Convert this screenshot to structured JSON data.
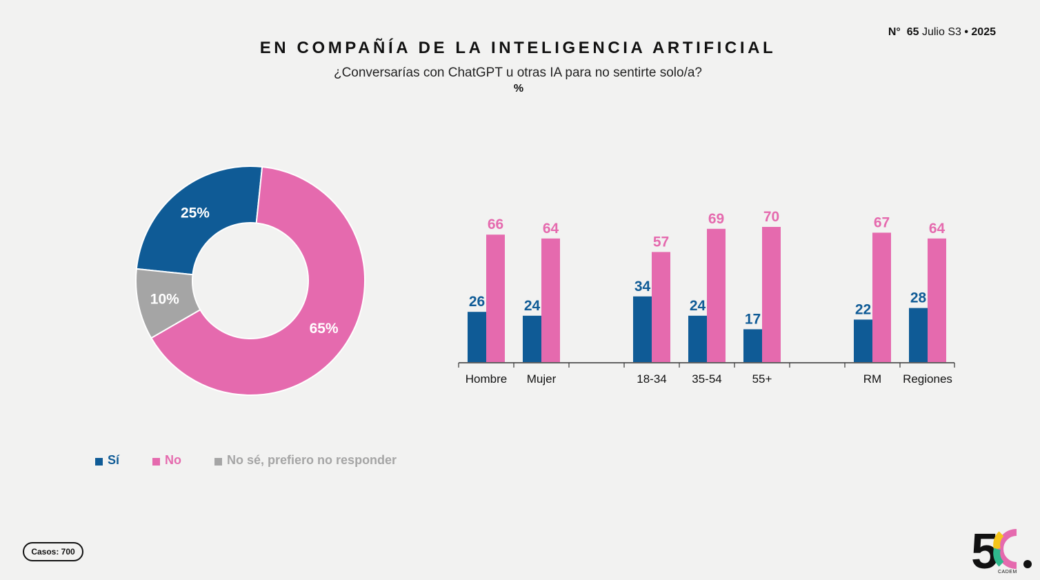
{
  "header": {
    "issue_label": "N°",
    "issue_number": "65",
    "issue_period": "Julio S3",
    "issue_sep": "•",
    "issue_year": "2025"
  },
  "title": "EN COMPAÑÍA DE LA INTELIGENCIA ARTIFICIAL",
  "subtitle": "¿Conversarías con ChatGPT u otras IA para no sentirte solo/a?",
  "unit": "%",
  "legend": [
    {
      "label": "Sí",
      "color": "#0f5b96"
    },
    {
      "label": "No",
      "color": "#e56aae"
    },
    {
      "label": "No sé, prefiero no responder",
      "color": "#a5a5a5"
    }
  ],
  "cases": "Casos: 700",
  "logo": {
    "mark": "5C",
    "name": "CADEM"
  },
  "colors": {
    "si": "#0f5b96",
    "no": "#e56aae",
    "nose": "#a5a5a5",
    "axis": "#333333"
  },
  "chart_data": [
    {
      "type": "pie",
      "donut": true,
      "labels": [
        "Sí",
        "No",
        "No sé, prefiero no responder"
      ],
      "values": [
        25,
        65,
        10
      ],
      "value_labels": [
        "25%",
        "65%",
        "10%"
      ]
    },
    {
      "type": "bar",
      "categories": [
        "Hombre",
        "Mujer",
        "18-34",
        "35-54",
        "55+",
        "RM",
        "Regiones"
      ],
      "groups": [
        [
          "Hombre",
          "Mujer"
        ],
        [
          "18-34",
          "35-54",
          "55+"
        ],
        [
          "RM",
          "Regiones"
        ]
      ],
      "series": [
        {
          "name": "Sí",
          "values": [
            26,
            24,
            34,
            24,
            17,
            22,
            28
          ]
        },
        {
          "name": "No",
          "values": [
            66,
            64,
            57,
            69,
            70,
            67,
            64
          ]
        }
      ],
      "ylim": [
        0,
        70
      ],
      "grid": false
    }
  ]
}
